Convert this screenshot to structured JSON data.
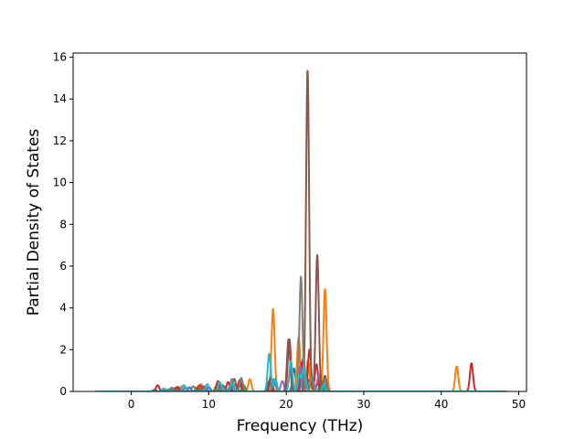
{
  "chart_data": {
    "type": "line",
    "title": "",
    "xlabel": "Frequency (THz)",
    "ylabel": "Partial Density of States",
    "xlim": [
      -7.5,
      51
    ],
    "ylim": [
      0,
      16.2
    ],
    "xticks": [
      0,
      10,
      20,
      30,
      40,
      50
    ],
    "yticks": [
      0,
      2,
      4,
      6,
      8,
      10,
      12,
      14,
      16
    ],
    "grid": false,
    "legend": "none",
    "x_range": [
      -4.6,
      48.4
    ],
    "series": [
      {
        "color": "#1f77b4",
        "peaks": [
          [
            3.0,
            0.08
          ],
          [
            5.5,
            0.15
          ],
          [
            7.5,
            0.2
          ],
          [
            10.0,
            0.22
          ],
          [
            12.0,
            0.25
          ],
          [
            14.0,
            0.3
          ],
          [
            17.8,
            0.5
          ],
          [
            21.0,
            1.1
          ],
          [
            22.2,
            1.6
          ],
          [
            23.0,
            0.6
          ],
          [
            24.0,
            0.4
          ],
          [
            25.0,
            0.3
          ]
        ]
      },
      {
        "color": "#ff7f0e",
        "peaks": [
          [
            4.0,
            0.1
          ],
          [
            6.5,
            0.25
          ],
          [
            9.0,
            0.35
          ],
          [
            11.0,
            0.3
          ],
          [
            13.5,
            0.35
          ],
          [
            15.3,
            0.6
          ],
          [
            18.3,
            3.95
          ],
          [
            21.6,
            2.6
          ],
          [
            22.8,
            1.5
          ],
          [
            25.0,
            4.9
          ],
          [
            42.0,
            1.2
          ]
        ]
      },
      {
        "color": "#2ca02c",
        "peaks": [
          [
            5.0,
            0.12
          ],
          [
            8.5,
            0.2
          ],
          [
            11.5,
            0.25
          ],
          [
            14.5,
            0.3
          ],
          [
            18.0,
            0.45
          ],
          [
            22.5,
            0.9
          ],
          [
            24.5,
            0.5
          ]
        ]
      },
      {
        "color": "#d62728",
        "peaks": [
          [
            3.4,
            0.3
          ],
          [
            6.0,
            0.22
          ],
          [
            8.8,
            0.3
          ],
          [
            11.2,
            0.5
          ],
          [
            12.5,
            0.45
          ],
          [
            14.0,
            0.55
          ],
          [
            18.0,
            0.7
          ],
          [
            20.4,
            2.5
          ],
          [
            22.0,
            1.4
          ],
          [
            23.0,
            2.0
          ],
          [
            23.9,
            1.3
          ],
          [
            43.9,
            1.35
          ]
        ]
      },
      {
        "color": "#9467bd",
        "peaks": [
          [
            4.5,
            0.1
          ],
          [
            7.0,
            0.2
          ],
          [
            9.5,
            0.25
          ],
          [
            12.8,
            0.3
          ],
          [
            19.5,
            0.5
          ],
          [
            21.8,
            1.2
          ],
          [
            24.2,
            0.8
          ]
        ]
      },
      {
        "color": "#8c564b",
        "peaks": [
          [
            5.8,
            0.2
          ],
          [
            9.2,
            0.25
          ],
          [
            13.3,
            0.6
          ],
          [
            18.5,
            0.35
          ],
          [
            20.3,
            2.5
          ],
          [
            22.75,
            15.4
          ],
          [
            24.0,
            6.55
          ],
          [
            25.0,
            0.75
          ]
        ]
      },
      {
        "color": "#7f7f7f",
        "peaks": [
          [
            5.2,
            0.18
          ],
          [
            8.0,
            0.25
          ],
          [
            11.8,
            0.3
          ],
          [
            13.0,
            0.6
          ],
          [
            14.2,
            0.65
          ],
          [
            18.4,
            0.6
          ],
          [
            21.9,
            5.5
          ],
          [
            23.3,
            0.7
          ],
          [
            25.0,
            0.5
          ]
        ]
      },
      {
        "color": "#17becf",
        "peaks": [
          [
            4.2,
            0.15
          ],
          [
            6.8,
            0.3
          ],
          [
            9.8,
            0.35
          ],
          [
            11.4,
            0.45
          ],
          [
            13.0,
            0.4
          ],
          [
            17.8,
            1.8
          ],
          [
            18.6,
            0.6
          ],
          [
            20.6,
            1.45
          ],
          [
            21.7,
            0.8
          ],
          [
            22.3,
            1.2
          ],
          [
            24.8,
            0.3
          ]
        ]
      }
    ]
  }
}
